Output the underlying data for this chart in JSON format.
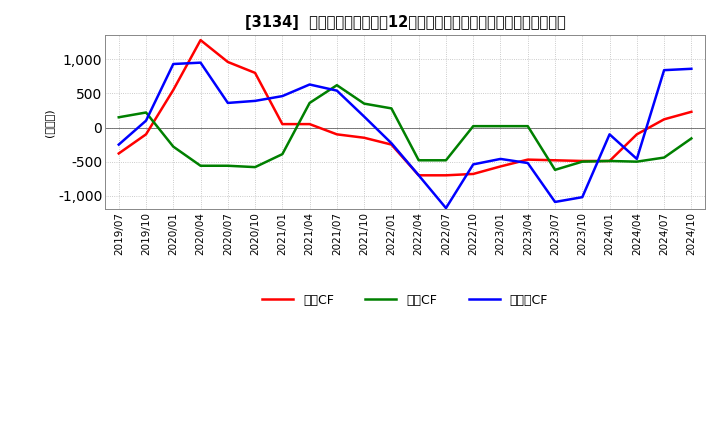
{
  "title": "[3134]  キャッシュフローの12か月移動合計の対前年同期増減額の推移",
  "ylabel": "(百万円)",
  "ylim": [
    -1200,
    1350
  ],
  "yticks": [
    -1000,
    -500,
    0,
    500,
    1000
  ],
  "legend_labels": [
    "営業CF",
    "投資CF",
    "フリーCF"
  ],
  "colors": {
    "eigyo": "#ff0000",
    "toshi": "#008000",
    "free": "#0000ff"
  },
  "x_labels": [
    "2019/07",
    "2019/10",
    "2020/01",
    "2020/04",
    "2020/07",
    "2020/10",
    "2021/01",
    "2021/04",
    "2021/07",
    "2021/10",
    "2022/01",
    "2022/04",
    "2022/07",
    "2022/10",
    "2023/01",
    "2023/04",
    "2023/07",
    "2023/10",
    "2024/01",
    "2024/04",
    "2024/07",
    "2024/10"
  ],
  "eigyo_cf": [
    -380,
    -100,
    550,
    1280,
    960,
    800,
    50,
    50,
    -100,
    -150,
    -250,
    -700,
    -700,
    -680,
    -570,
    -470,
    -480,
    -490,
    -490,
    -100,
    120,
    230
  ],
  "toshi_cf": [
    150,
    220,
    -280,
    -560,
    -560,
    -580,
    -390,
    360,
    620,
    350,
    280,
    -480,
    -480,
    20,
    20,
    20,
    -620,
    -500,
    -490,
    -500,
    -440,
    -160
  ],
  "free_cf": [
    -250,
    100,
    930,
    950,
    360,
    390,
    460,
    630,
    540,
    160,
    -230,
    -700,
    -1180,
    -540,
    -460,
    -520,
    -1090,
    -1020,
    -100,
    -460,
    840,
    860
  ],
  "background_color": "#ffffff",
  "grid_color": "#bbbbbb",
  "grid_style": "dotted",
  "linewidth": 1.8
}
